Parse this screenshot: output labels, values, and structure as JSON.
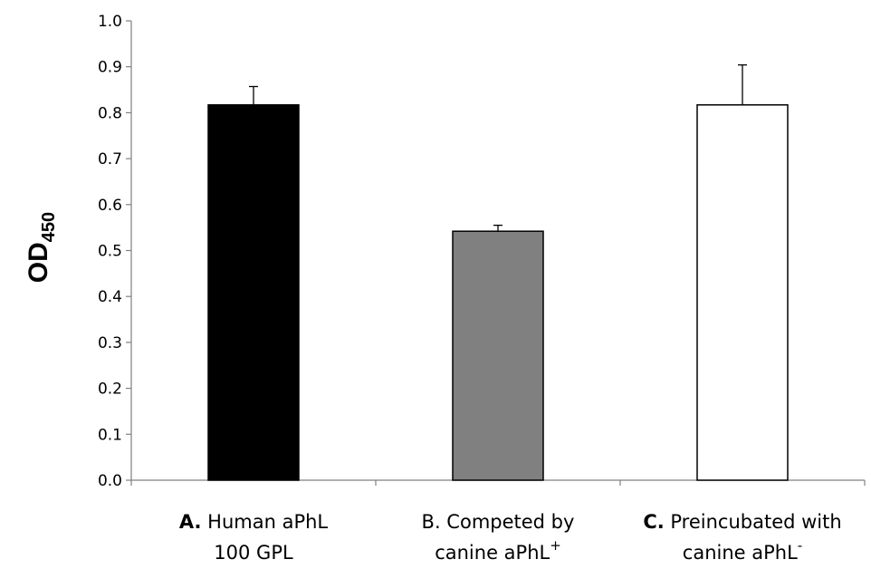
{
  "chart_data": {
    "type": "bar",
    "title": "",
    "ylabel": {
      "main": "OD",
      "subscript": "450"
    },
    "xlabel": "",
    "ylim": [
      0,
      1.0
    ],
    "ytick_values": [
      0.0,
      0.1,
      0.2,
      0.3,
      0.4,
      0.5,
      0.6,
      0.7,
      0.8,
      0.9,
      1.0
    ],
    "ytick_labels": [
      "0.0",
      "0.1",
      "0.2",
      "0.3",
      "0.4",
      "0.5",
      "0.6",
      "0.7",
      "0.8",
      "0.9",
      "1.0"
    ],
    "grid": false,
    "legend": "none",
    "categories": [
      {
        "line1_prefix": "A.",
        "line1_rest": " Human aPhL",
        "line2_text": "100 GPL",
        "line2_sup": ""
      },
      {
        "line1_prefix": "",
        "line1_rest": "B. Competed by",
        "line2_text": "canine aPhL",
        "line2_sup": "+"
      },
      {
        "line1_prefix": "C.",
        "line1_rest": " Preincubated with",
        "line2_text": "canine aPhL",
        "line2_sup": "-"
      }
    ],
    "values": [
      0.817,
      0.542,
      0.817
    ],
    "errors": [
      0.04,
      0.013,
      0.087
    ],
    "colors": {
      "bar_fills": [
        "#000000",
        "#808080",
        "#ffffff"
      ],
      "bar_stroke": "#000000",
      "axis": "#808080",
      "text": "#000000"
    }
  }
}
